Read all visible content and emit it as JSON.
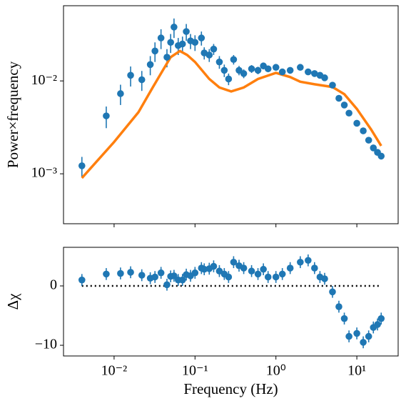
{
  "chart_data": [
    {
      "type": "errorbar",
      "ylabel": "Power×frequency",
      "log_x": true,
      "log_y": true,
      "color": "#1f77b4",
      "x": [
        0.004,
        0.008,
        0.012,
        0.016,
        0.022,
        0.028,
        0.032,
        0.038,
        0.045,
        0.05,
        0.055,
        0.062,
        0.07,
        0.078,
        0.088,
        0.1,
        0.12,
        0.13,
        0.15,
        0.17,
        0.2,
        0.23,
        0.26,
        0.3,
        0.35,
        0.4,
        0.5,
        0.6,
        0.7,
        0.8,
        1.0,
        1.2,
        1.5,
        2.0,
        2.5,
        3.0,
        3.5,
        4.0,
        5.0,
        6.0,
        7.0,
        8.0,
        10,
        12,
        14,
        16,
        18,
        20
      ],
      "values": [
        0.00122,
        0.0042,
        0.0073,
        0.0115,
        0.0103,
        0.015,
        0.021,
        0.029,
        0.018,
        0.026,
        0.038,
        0.024,
        0.025,
        0.034,
        0.027,
        0.026,
        0.029,
        0.02,
        0.019,
        0.022,
        0.016,
        0.013,
        0.0105,
        0.017,
        0.013,
        0.012,
        0.0135,
        0.013,
        0.0145,
        0.0135,
        0.014,
        0.0125,
        0.013,
        0.014,
        0.0125,
        0.012,
        0.0115,
        0.0108,
        0.009,
        0.0065,
        0.0055,
        0.0045,
        0.0035,
        0.0029,
        0.0023,
        0.0019,
        0.0017,
        0.00155
      ],
      "errors": [
        0.0003,
        0.0011,
        0.0018,
        0.0028,
        0.0025,
        0.0035,
        0.005,
        0.007,
        0.004,
        0.006,
        0.009,
        0.005,
        0.005,
        0.007,
        0.005,
        0.005,
        0.005,
        0.003,
        0.003,
        0.003,
        0.0025,
        0.002,
        0.0015,
        0.002,
        0.0015,
        0.0013,
        0.0013,
        0.0012,
        0.0012,
        0.0011,
        0.0011,
        0.001,
        0.001,
        0.001,
        0.0009,
        0.0009,
        0.0008,
        0.0008,
        0.0006,
        0.0005,
        0.0004,
        0.0003,
        0.00025,
        0.0002,
        0.00016,
        0.00013,
        0.00012,
        0.0001
      ],
      "model": {
        "color": "#ff7f0e",
        "x": [
          0.004,
          0.01,
          0.02,
          0.03,
          0.04,
          0.05,
          0.065,
          0.08,
          0.1,
          0.15,
          0.2,
          0.28,
          0.4,
          0.6,
          1.0,
          1.5,
          2,
          3,
          5,
          7,
          10,
          15,
          20
        ],
        "values": [
          0.0009,
          0.0022,
          0.0046,
          0.0085,
          0.013,
          0.018,
          0.021,
          0.019,
          0.016,
          0.0105,
          0.0085,
          0.0077,
          0.0085,
          0.0105,
          0.0122,
          0.011,
          0.0098,
          0.0092,
          0.0086,
          0.0072,
          0.005,
          0.003,
          0.002
        ]
      },
      "xlim": [
        0.00237,
        32.4
      ],
      "ylim": [
        0.00029,
        0.0645
      ],
      "xticks": [
        0.01,
        0.1,
        1,
        10
      ],
      "yticks": [
        {
          "value": 0.001,
          "label": "10⁻³"
        },
        {
          "value": 0.01,
          "label": "10⁻²"
        }
      ]
    },
    {
      "type": "errorbar",
      "ylabel": "Δχ",
      "xlabel": "Frequency (Hz)",
      "log_x": true,
      "log_y": false,
      "color": "#1f77b4",
      "x": [
        0.004,
        0.008,
        0.012,
        0.016,
        0.022,
        0.028,
        0.032,
        0.038,
        0.045,
        0.05,
        0.055,
        0.062,
        0.07,
        0.078,
        0.088,
        0.1,
        0.12,
        0.13,
        0.15,
        0.17,
        0.2,
        0.23,
        0.26,
        0.3,
        0.35,
        0.4,
        0.5,
        0.6,
        0.7,
        0.8,
        1.0,
        1.2,
        1.5,
        2.0,
        2.5,
        3.0,
        3.5,
        4.0,
        5.0,
        6.0,
        7.0,
        8.0,
        10,
        12,
        14,
        16,
        18,
        20
      ],
      "values": [
        1.0,
        2.0,
        2.1,
        2.3,
        1.8,
        1.3,
        1.5,
        2.2,
        0.2,
        1.6,
        1.7,
        1.0,
        1.0,
        1.9,
        1.7,
        2.2,
        3.0,
        2.8,
        2.9,
        3.3,
        2.5,
        2.0,
        1.5,
        4.0,
        3.4,
        3.0,
        2.5,
        2.0,
        2.8,
        1.5,
        1.5,
        2.0,
        3.0,
        4.0,
        4.3,
        3.0,
        1.5,
        1.2,
        -1.0,
        -3.5,
        -5.5,
        -8.5,
        -8.0,
        -9.5,
        -8.5,
        -7.0,
        -6.5,
        -5.5
      ],
      "errors": [
        1,
        1,
        1,
        1,
        1,
        1,
        1,
        1,
        1,
        1,
        1,
        1,
        1,
        1,
        1,
        1,
        1,
        1,
        1,
        1,
        1,
        1,
        1,
        1,
        1,
        1,
        1,
        1,
        1,
        1,
        1,
        1,
        1,
        1,
        1,
        1,
        1,
        1,
        1,
        1,
        1,
        1,
        1,
        1,
        1,
        1,
        1,
        1
      ],
      "reference_line": {
        "y": 0,
        "color": "#000000"
      },
      "xlim": [
        0.00237,
        32.4
      ],
      "ylim": [
        -11.8,
        6.5
      ],
      "xticks": [
        {
          "value": 0.01,
          "label": "10⁻²"
        },
        {
          "value": 0.1,
          "label": "10⁻¹"
        },
        {
          "value": 1,
          "label": "10⁰"
        },
        {
          "value": 10,
          "label": "10¹"
        }
      ],
      "yticks": [
        {
          "value": -10,
          "label": "−10"
        },
        0
      ]
    }
  ]
}
